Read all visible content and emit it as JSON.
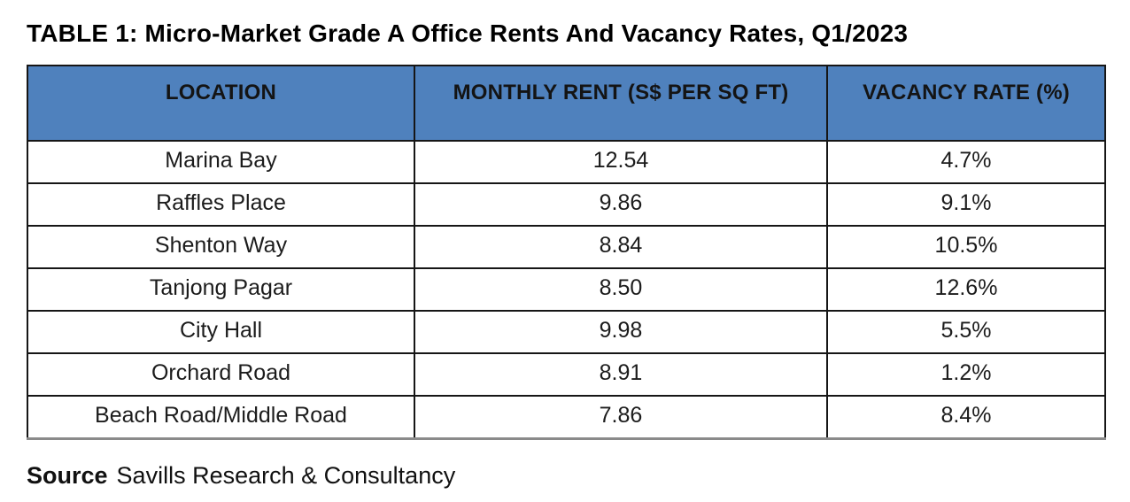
{
  "title": "TABLE 1: Micro-Market Grade A Office Rents And Vacancy Rates, Q1/2023",
  "table": {
    "header_bg": "#4f81bd",
    "border_color": "#161616",
    "columns": [
      "LOCATION",
      "MONTHLY RENT (S$ PER SQ FT)",
      "VACANCY RATE (%)"
    ],
    "rows": [
      {
        "location": "Marina Bay",
        "rent": "12.54",
        "vacancy": "4.7%"
      },
      {
        "location": "Raffles Place",
        "rent": "9.86",
        "vacancy": "9.1%"
      },
      {
        "location": "Shenton Way",
        "rent": "8.84",
        "vacancy": "10.5%"
      },
      {
        "location": "Tanjong Pagar",
        "rent": "8.50",
        "vacancy": "12.6%"
      },
      {
        "location": "City Hall",
        "rent": "9.98",
        "vacancy": "5.5%"
      },
      {
        "location": "Orchard Road",
        "rent": "8.91",
        "vacancy": "1.2%"
      },
      {
        "location": "Beach Road/Middle Road",
        "rent": "7.86",
        "vacancy": "8.4%"
      }
    ]
  },
  "source": {
    "label": "Source",
    "text": "Savills Research & Consultancy"
  },
  "chart_data": {
    "type": "table",
    "title": "TABLE 1: Micro-Market Grade A Office Rents And Vacancy Rates, Q1/2023",
    "columns": [
      "LOCATION",
      "MONTHLY RENT (S$ PER SQ FT)",
      "VACANCY RATE (%)"
    ],
    "rows": [
      [
        "Marina Bay",
        12.54,
        4.7
      ],
      [
        "Raffles Place",
        9.86,
        9.1
      ],
      [
        "Shenton Way",
        8.84,
        10.5
      ],
      [
        "Tanjong Pagar",
        8.5,
        12.6
      ],
      [
        "City Hall",
        9.98,
        5.5
      ],
      [
        "Orchard Road",
        8.91,
        1.2
      ],
      [
        "Beach Road/Middle Road",
        7.86,
        8.4
      ]
    ],
    "source": "Savills Research & Consultancy"
  }
}
